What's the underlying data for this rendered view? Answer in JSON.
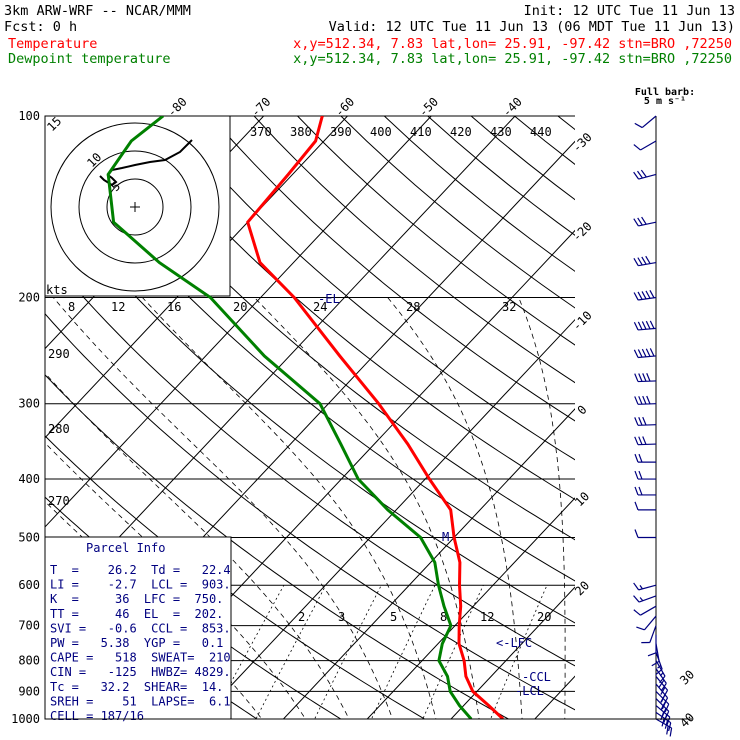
{
  "header": {
    "model": "3km ARW-WRF -- NCAR/MMM",
    "init": "Init: 12 UTC Tue 11 Jun 13",
    "fcst": "Fcst:    0 h",
    "valid": "Valid: 12 UTC Tue 11 Jun 13 (06 MDT Tue 11 Jun 13)",
    "temp_label": "Temperature",
    "dew_label": "Dewpoint temperature",
    "temp_loc": "x,y=512.34,  7.83   lat,lon= 25.91, -97.42  stn=BRO ,72250",
    "dew_loc": "x,y=512.34,  7.83   lat,lon= 25.91, -97.42  stn=BRO ,72250"
  },
  "wind_key": {
    "line1": "Full barb:",
    "line2": "5 m s⁻¹"
  },
  "parcel_info": {
    "title": "Parcel Info",
    "rows": [
      "T  =    26.2  Td =   22.4",
      "LI =    -2.7  LCL =  903.",
      "K  =     36  LFC =  750.",
      "TT =     46  EL  =  202.",
      "SVI =   -0.6  CCL =  853.",
      "PW =   5.38  YGP =   0.1",
      "CAPE =   518  SWEAT=  210",
      "CIN =   -125  HWBZ= 4829.",
      "Tc =   32.2  SHEAR=  14.",
      "SREH =    51  LAPSE=  6.1",
      "CELL = 187/16"
    ]
  },
  "hodograph": {
    "speed_unit": "kts",
    "ring_labels": [
      "5",
      "10",
      "15"
    ]
  },
  "level_markers": {
    "el": "-EL",
    "lfc": "<-LFC",
    "ccl": "-CCL",
    "lcl": "-LCL",
    "m": "M"
  },
  "chart_data": {
    "type": "line",
    "title": "",
    "xlabel": "",
    "ylabel": "",
    "y_scale": "log-pressure",
    "ylim": [
      1000,
      100
    ],
    "pressure_ticks": [
      100,
      200,
      300,
      400,
      500,
      600,
      700,
      800,
      900,
      1000
    ],
    "temperature_ticks": [
      -80,
      -70,
      -60,
      -50,
      -40,
      -30,
      -20,
      -10,
      0,
      10,
      20,
      30,
      40
    ],
    "theta_labels": [
      270,
      280,
      290,
      370,
      380,
      390,
      400,
      410,
      420,
      430,
      440
    ],
    "mixing_ratio_labels": [
      8,
      12,
      16,
      20,
      24,
      28,
      32
    ],
    "mixing_ratio_labels_low": [
      2,
      3,
      5,
      8,
      12,
      20
    ],
    "series": [
      {
        "name": "Temperature",
        "color": "#ff0000",
        "points": [
          {
            "p": 1000,
            "t": 26.2
          },
          {
            "p": 950,
            "t": 23.0
          },
          {
            "p": 900,
            "t": 19.5
          },
          {
            "p": 850,
            "t": 17.0
          },
          {
            "p": 800,
            "t": 15.0
          },
          {
            "p": 750,
            "t": 12.5
          },
          {
            "p": 700,
            "t": 10.5
          },
          {
            "p": 650,
            "t": 8.5
          },
          {
            "p": 600,
            "t": 6.0
          },
          {
            "p": 550,
            "t": 3.5
          },
          {
            "p": 500,
            "t": 0.0
          },
          {
            "p": 450,
            "t": -3.5
          },
          {
            "p": 400,
            "t": -9.5
          },
          {
            "p": 350,
            "t": -16.0
          },
          {
            "p": 300,
            "t": -24.0
          },
          {
            "p": 250,
            "t": -34.0
          },
          {
            "p": 200,
            "t": -46.0
          },
          {
            "p": 175,
            "t": -54.0
          },
          {
            "p": 150,
            "t": -60.0
          },
          {
            "p": 125,
            "t": -60.5
          },
          {
            "p": 110,
            "t": -61.0
          },
          {
            "p": 100,
            "t": -63.0
          }
        ]
      },
      {
        "name": "Dewpoint temperature",
        "color": "#008000",
        "points": [
          {
            "p": 1000,
            "t": 22.4
          },
          {
            "p": 950,
            "t": 19.5
          },
          {
            "p": 900,
            "t": 16.8
          },
          {
            "p": 850,
            "t": 14.8
          },
          {
            "p": 800,
            "t": 12.0
          },
          {
            "p": 750,
            "t": 10.5
          },
          {
            "p": 700,
            "t": 9.5
          },
          {
            "p": 650,
            "t": 6.5
          },
          {
            "p": 600,
            "t": 3.5
          },
          {
            "p": 550,
            "t": 0.5
          },
          {
            "p": 500,
            "t": -4.0
          },
          {
            "p": 450,
            "t": -11.0
          },
          {
            "p": 400,
            "t": -18.0
          },
          {
            "p": 350,
            "t": -24.0
          },
          {
            "p": 300,
            "t": -31.0
          },
          {
            "p": 250,
            "t": -43.0
          },
          {
            "p": 200,
            "t": -56.0
          },
          {
            "p": 175,
            "t": -66.0
          },
          {
            "p": 150,
            "t": -76.0
          },
          {
            "p": 125,
            "t": -82.0
          },
          {
            "p": 110,
            "t": -83.0
          },
          {
            "p": 100,
            "t": -82.0
          }
        ]
      }
    ],
    "wind_barbs": [
      {
        "p": 1000,
        "dir": 120,
        "spd": 10
      },
      {
        "p": 975,
        "dir": 125,
        "spd": 14
      },
      {
        "p": 950,
        "dir": 130,
        "spd": 14
      },
      {
        "p": 925,
        "dir": 135,
        "spd": 13
      },
      {
        "p": 900,
        "dir": 135,
        "spd": 12
      },
      {
        "p": 875,
        "dir": 140,
        "spd": 11
      },
      {
        "p": 850,
        "dir": 140,
        "spd": 10
      },
      {
        "p": 825,
        "dir": 145,
        "spd": 9
      },
      {
        "p": 800,
        "dir": 150,
        "spd": 8
      },
      {
        "p": 775,
        "dir": 160,
        "spd": 7
      },
      {
        "p": 750,
        "dir": 170,
        "spd": 6
      },
      {
        "p": 725,
        "dir": 180,
        "spd": 5
      },
      {
        "p": 700,
        "dir": 200,
        "spd": 5
      },
      {
        "p": 675,
        "dir": 220,
        "spd": 5
      },
      {
        "p": 650,
        "dir": 240,
        "spd": 6
      },
      {
        "p": 625,
        "dir": 250,
        "spd": 7
      },
      {
        "p": 600,
        "dir": 255,
        "spd": 8
      },
      {
        "p": 500,
        "dir": 270,
        "spd": 5
      },
      {
        "p": 450,
        "dir": 270,
        "spd": 5
      },
      {
        "p": 425,
        "dir": 270,
        "spd": 10
      },
      {
        "p": 400,
        "dir": 270,
        "spd": 10
      },
      {
        "p": 375,
        "dir": 270,
        "spd": 10
      },
      {
        "p": 350,
        "dir": 268,
        "spd": 15
      },
      {
        "p": 325,
        "dir": 268,
        "spd": 15
      },
      {
        "p": 300,
        "dir": 268,
        "spd": 20
      },
      {
        "p": 275,
        "dir": 268,
        "spd": 20
      },
      {
        "p": 250,
        "dir": 265,
        "spd": 25
      },
      {
        "p": 225,
        "dir": 265,
        "spd": 25
      },
      {
        "p": 200,
        "dir": 262,
        "spd": 25
      },
      {
        "p": 175,
        "dir": 260,
        "spd": 20
      },
      {
        "p": 150,
        "dir": 258,
        "spd": 15
      },
      {
        "p": 125,
        "dir": 255,
        "spd": 15
      },
      {
        "p": 110,
        "dir": 240,
        "spd": 5
      },
      {
        "p": 100,
        "dir": 230,
        "spd": 5
      }
    ]
  }
}
